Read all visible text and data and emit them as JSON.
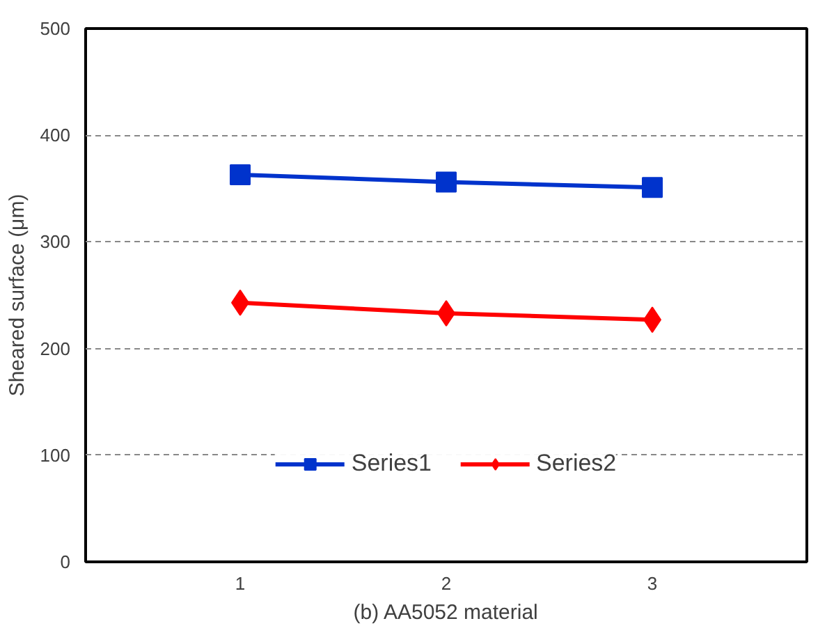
{
  "chart_data": {
    "type": "line",
    "xlabel": "(b) AA5052 material",
    "ylabel": "Sheared surface (μm)",
    "categories": [
      "1",
      "2",
      "3"
    ],
    "series": [
      {
        "name": "Series1",
        "color": "#0033cc",
        "values": [
          363,
          356,
          351
        ],
        "marker": "square"
      },
      {
        "name": "Series2",
        "color": "#ff0000",
        "values": [
          243,
          233,
          227
        ],
        "marker": "diamond"
      }
    ],
    "ylim": [
      0,
      500
    ],
    "yticks": [
      0,
      100,
      200,
      300,
      400,
      500
    ],
    "grid": "y",
    "legend": "bottom",
    "line_style": "solid"
  }
}
